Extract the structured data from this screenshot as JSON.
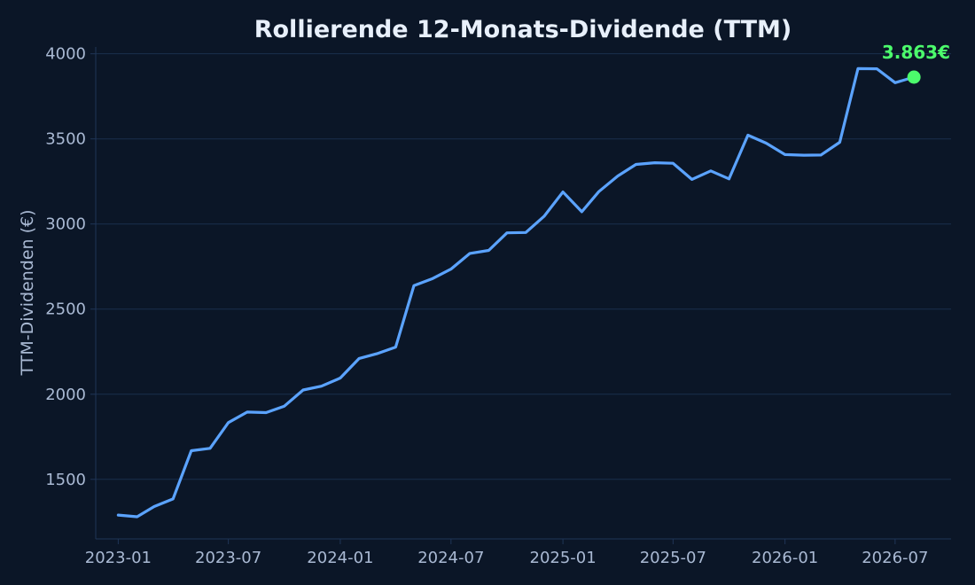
{
  "colors": {
    "background": "#0b1627",
    "grid": "#1a2f4d",
    "axis": "#1f3557",
    "tick_text": "#a9b9d3",
    "title_text": "#e8f0fb",
    "line": "#5ba3ff",
    "highlight": "#4cfc6c"
  },
  "chart_data": {
    "type": "line",
    "title": "Rollierende 12-Monats-Dividende (TTM)",
    "xlabel": "",
    "ylabel": "TTM-Dividenden (€)",
    "x": [
      "2023-01",
      "2023-02",
      "2023-03",
      "2023-04",
      "2023-05",
      "2023-06",
      "2023-07",
      "2023-08",
      "2023-09",
      "2023-10",
      "2023-11",
      "2023-12",
      "2024-01",
      "2024-02",
      "2024-03",
      "2024-04",
      "2024-05",
      "2024-06",
      "2024-07",
      "2024-08",
      "2024-09",
      "2024-10",
      "2024-11",
      "2024-12",
      "2025-01",
      "2025-02",
      "2025-03",
      "2025-04",
      "2025-05",
      "2025-06",
      "2025-07",
      "2025-08",
      "2025-09",
      "2025-10",
      "2025-11",
      "2025-12",
      "2026-01",
      "2026-02",
      "2026-03",
      "2026-04",
      "2026-05",
      "2026-06",
      "2026-07",
      "2026-08"
    ],
    "y": [
      1290,
      1280,
      1340,
      1385,
      1668,
      1682,
      1833,
      1895,
      1892,
      1930,
      2025,
      2047,
      2095,
      2210,
      2238,
      2277,
      2638,
      2680,
      2735,
      2827,
      2845,
      2948,
      2950,
      3045,
      3188,
      3072,
      3190,
      3282,
      3350,
      3360,
      3357,
      3262,
      3312,
      3265,
      3522,
      3475,
      3408,
      3404,
      3405,
      3480,
      3913,
      3912,
      3830,
      3863
    ],
    "xticks": [
      "2023-01",
      "2023-07",
      "2024-01",
      "2024-07",
      "2025-01",
      "2025-07",
      "2026-01",
      "2026-07"
    ],
    "yticks": [
      1500,
      2000,
      2500,
      3000,
      3500,
      4000
    ],
    "xlim": [
      "2022-11-25",
      "2026-10-01"
    ],
    "ylim": [
      1150,
      4040
    ],
    "grid": "horizontal",
    "last_point_label": "3.863€"
  }
}
